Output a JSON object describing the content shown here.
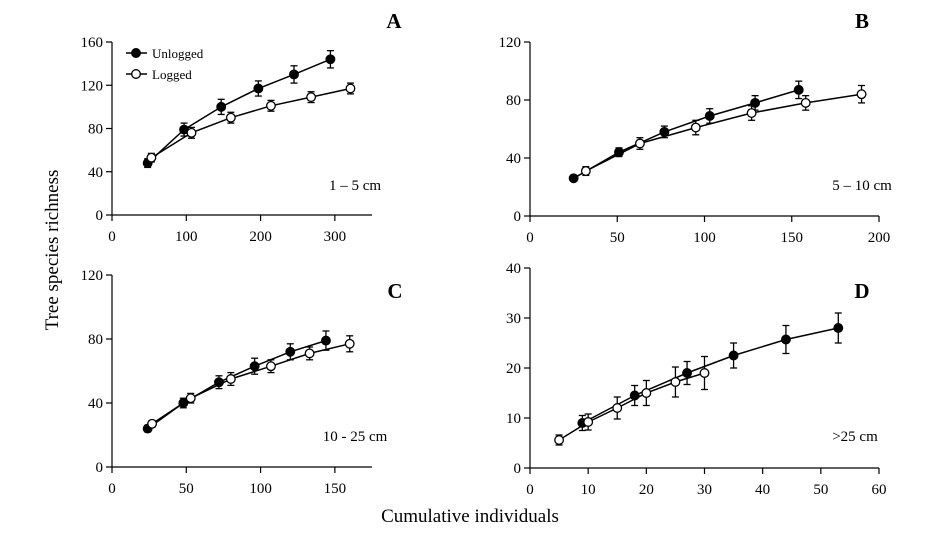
{
  "figure": {
    "ylabel": "Tree species richness",
    "xlabel": "Cumulative individuals",
    "legend": {
      "placement": "top-left of panel A",
      "entries": [
        {
          "label": "Unlogged",
          "marker": "filled-circle"
        },
        {
          "label": "Logged",
          "marker": "open-circle"
        }
      ]
    }
  },
  "chart_data": [
    {
      "type": "line",
      "panel": "A",
      "size_class": "1 – 5 cm",
      "xlim": [
        0,
        350
      ],
      "ylim": [
        0,
        160
      ],
      "xticks": [
        0,
        100,
        200,
        300
      ],
      "yticks": [
        0,
        40,
        80,
        120,
        160
      ],
      "series": [
        {
          "name": "Unlogged",
          "marker": "filled",
          "x": [
            48,
            97,
            147,
            197,
            245,
            294
          ],
          "y": [
            48,
            79,
            100,
            117,
            130,
            144
          ],
          "err": [
            4,
            6,
            7,
            7,
            8,
            8
          ]
        },
        {
          "name": "Logged",
          "marker": "open",
          "x": [
            53,
            107,
            160,
            214,
            268,
            321
          ],
          "y": [
            53,
            76,
            90,
            101,
            109,
            117
          ],
          "err": [
            4,
            5,
            5,
            5,
            5,
            5
          ]
        }
      ]
    },
    {
      "type": "line",
      "panel": "B",
      "size_class": "5 – 10 cm",
      "xlim": [
        0,
        200
      ],
      "ylim": [
        0,
        120
      ],
      "xticks": [
        0,
        50,
        100,
        150,
        200
      ],
      "yticks": [
        0,
        40,
        80,
        120
      ],
      "series": [
        {
          "name": "Unlogged",
          "marker": "filled",
          "x": [
            25,
            51,
            77,
            103,
            129,
            154
          ],
          "y": [
            26,
            44,
            58,
            69,
            78,
            87
          ],
          "err": [
            2,
            3,
            4,
            5,
            5,
            6
          ]
        },
        {
          "name": "Logged",
          "marker": "open",
          "x": [
            32,
            63,
            95,
            127,
            158,
            190
          ],
          "y": [
            31,
            50,
            61,
            71,
            78,
            84
          ],
          "err": [
            3,
            4,
            5,
            5,
            5,
            6
          ]
        }
      ]
    },
    {
      "type": "line",
      "panel": "C",
      "size_class": "10 - 25 cm",
      "xlim": [
        0,
        175
      ],
      "ylim": [
        0,
        120
      ],
      "xticks": [
        0,
        50,
        100,
        150
      ],
      "yticks": [
        0,
        40,
        80,
        120
      ],
      "series": [
        {
          "name": "Unlogged",
          "marker": "filled",
          "x": [
            24,
            48,
            72,
            96,
            120,
            144
          ],
          "y": [
            24,
            40,
            53,
            63,
            72,
            79
          ],
          "err": [
            2,
            3,
            4,
            5,
            5,
            6
          ]
        },
        {
          "name": "Logged",
          "marker": "open",
          "x": [
            27,
            53,
            80,
            107,
            133,
            160
          ],
          "y": [
            27,
            43,
            55,
            63,
            71,
            77
          ],
          "err": [
            2,
            3,
            4,
            4,
            4,
            5
          ]
        }
      ]
    },
    {
      "type": "line",
      "panel": "D",
      "size_class": ">25 cm",
      "xlim": [
        0,
        60
      ],
      "ylim": [
        0,
        40
      ],
      "xticks": [
        0,
        10,
        20,
        30,
        40,
        50,
        60
      ],
      "yticks": [
        0,
        10,
        20,
        30,
        40
      ],
      "series": [
        {
          "name": "Unlogged",
          "marker": "filled",
          "x": [
            9,
            18,
            27,
            35,
            44,
            53
          ],
          "y": [
            9,
            14.5,
            19,
            22.5,
            25.7,
            28
          ],
          "err": [
            1.5,
            2,
            2.3,
            2.5,
            2.8,
            3
          ]
        },
        {
          "name": "Logged",
          "marker": "open",
          "x": [
            5,
            10,
            15,
            20,
            25,
            30
          ],
          "y": [
            5.6,
            9.2,
            12,
            15,
            17.2,
            19
          ],
          "err": [
            1,
            1.6,
            2.2,
            2.5,
            3,
            3.3
          ]
        }
      ]
    }
  ]
}
